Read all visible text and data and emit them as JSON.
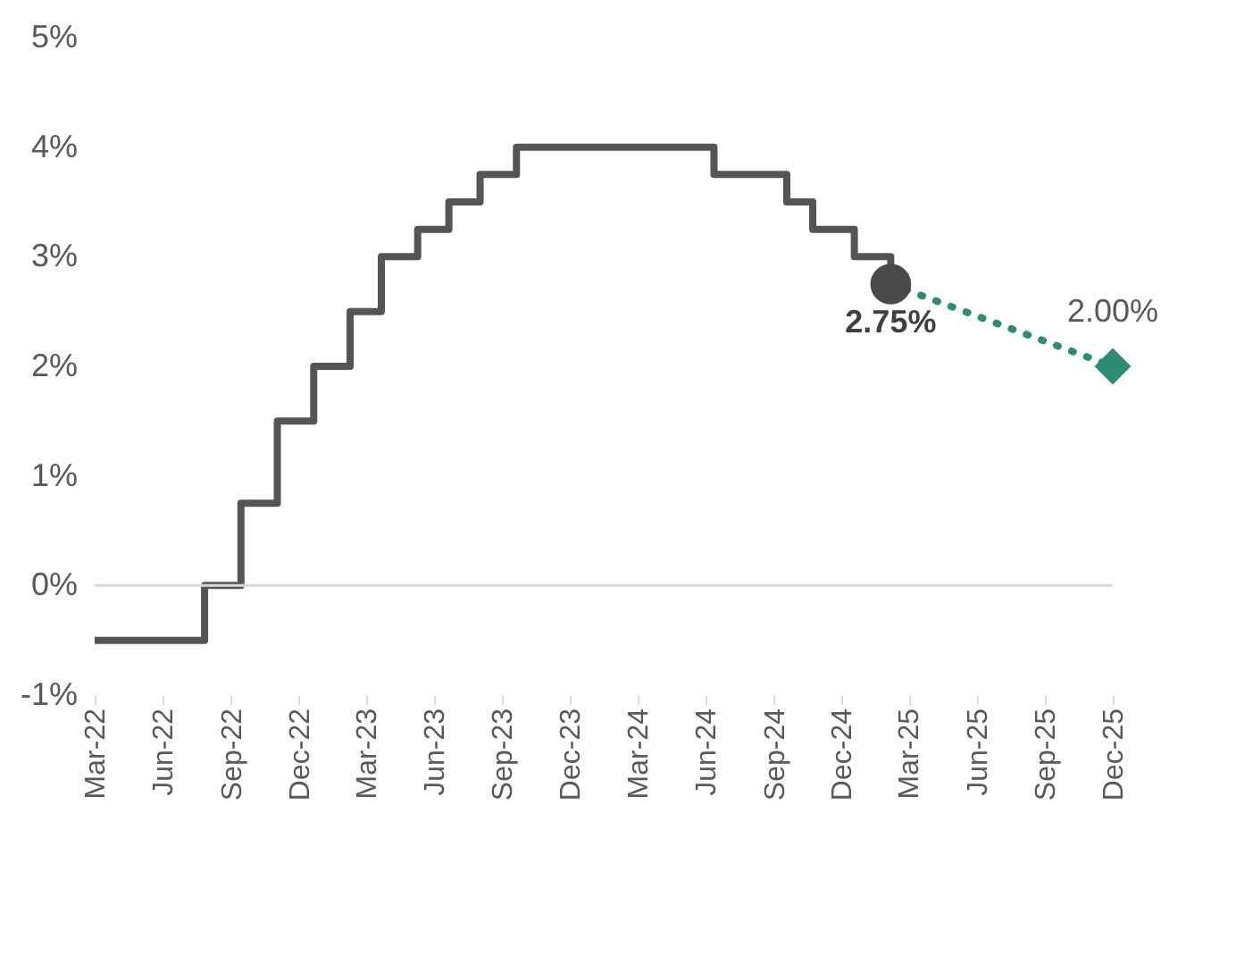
{
  "chart_data": {
    "type": "step",
    "ylim": [
      -1,
      5
    ],
    "yticks": [
      {
        "value": -1,
        "label": "-1%"
      },
      {
        "value": 0,
        "label": "0%"
      },
      {
        "value": 1,
        "label": "1%"
      },
      {
        "value": 2,
        "label": "2%"
      },
      {
        "value": 3,
        "label": "3%"
      },
      {
        "value": 4,
        "label": "4%"
      },
      {
        "value": 5,
        "label": "5%"
      }
    ],
    "xlim": [
      "2022-03-01",
      "2025-12-01"
    ],
    "xticks": [
      {
        "value": "2022-03-01",
        "label": "Mar-22"
      },
      {
        "value": "2022-06-01",
        "label": "Jun-22"
      },
      {
        "value": "2022-09-01",
        "label": "Sep-22"
      },
      {
        "value": "2022-12-01",
        "label": "Dec-22"
      },
      {
        "value": "2023-03-01",
        "label": "Mar-23"
      },
      {
        "value": "2023-06-01",
        "label": "Jun-23"
      },
      {
        "value": "2023-09-01",
        "label": "Sep-23"
      },
      {
        "value": "2023-12-01",
        "label": "Dec-23"
      },
      {
        "value": "2024-03-01",
        "label": "Mar-24"
      },
      {
        "value": "2024-06-01",
        "label": "Jun-24"
      },
      {
        "value": "2024-09-01",
        "label": "Sep-24"
      },
      {
        "value": "2024-12-01",
        "label": "Dec-24"
      },
      {
        "value": "2025-03-01",
        "label": "Mar-25"
      },
      {
        "value": "2025-06-01",
        "label": "Jun-25"
      },
      {
        "value": "2025-09-01",
        "label": "Sep-25"
      },
      {
        "value": "2025-12-01",
        "label": "Dec-25"
      }
    ],
    "ref_lines": [
      {
        "axis": "y",
        "value": 0,
        "color": "#d9d9d9"
      }
    ],
    "series": [
      {
        "type": "step",
        "color": "#555555",
        "x": [
          "2022-03-01",
          "2022-07-27",
          "2022-09-14",
          "2022-11-02",
          "2022-12-21",
          "2023-02-08",
          "2023-03-22",
          "2023-05-10",
          "2023-06-21",
          "2023-08-02",
          "2023-09-20",
          "2024-06-12",
          "2024-09-18",
          "2024-10-23",
          "2024-12-18",
          "2025-02-05"
        ],
        "values": [
          -0.5,
          0,
          0.75,
          1.5,
          2.0,
          2.5,
          3.0,
          3.25,
          3.5,
          3.75,
          4.0,
          3.75,
          3.5,
          3.25,
          3.0,
          2.75
        ]
      },
      {
        "type": "line",
        "color": "#2e8b74",
        "line_style": "dotted",
        "x": [
          "2025-02-05",
          "2025-12-01"
        ],
        "values": [
          2.75,
          2.0
        ]
      },
      {
        "type": "scatter",
        "color": "#4a4a4a",
        "marker": "circle",
        "x": [
          "2025-02-05"
        ],
        "values": [
          2.75
        ],
        "value_labels": [
          "2.75%"
        ]
      },
      {
        "type": "scatter",
        "color": "#2e8b74",
        "marker": "diamond",
        "x": [
          "2025-12-01"
        ],
        "values": [
          2.0
        ],
        "value_labels": [
          "2.00%"
        ]
      }
    ]
  }
}
